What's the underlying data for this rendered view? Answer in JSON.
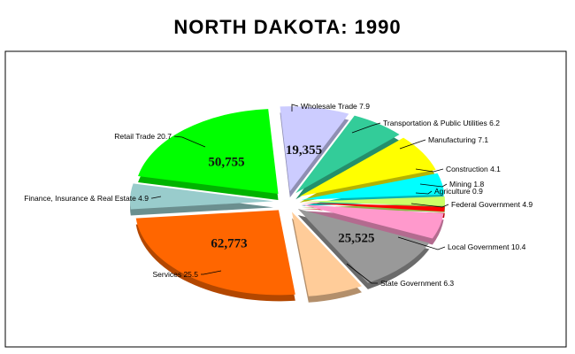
{
  "chart_data": {
    "type": "pie",
    "title": "NORTH DAKOTA:  1990",
    "slices": [
      {
        "label": "Wholesale Trade",
        "percent_text": "7.9",
        "percent": 7.9,
        "color": "#ccccff",
        "value_text": "19,355"
      },
      {
        "label": "Transportation & Public Utilities",
        "percent_text": "6.2",
        "percent": 6.2,
        "color": "#33cc99",
        "value_text": ""
      },
      {
        "label": "Manufacturing",
        "percent_text": "7.1",
        "percent": 7.1,
        "color": "#ffff00",
        "value_text": ""
      },
      {
        "label": "Construction",
        "percent_text": "4.1",
        "percent": 4.1,
        "color": "#00ffff",
        "value_text": ""
      },
      {
        "label": "Mining",
        "percent_text": "1.8",
        "percent": 1.8,
        "color": "#ccff66",
        "value_text": ""
      },
      {
        "label": "Agriculture",
        "percent_text": "0.9",
        "percent": 0.9,
        "color": "#ff0000",
        "value_text": ""
      },
      {
        "label": "Federal Government",
        "percent_text": "4.9",
        "percent": 4.9,
        "color": "#ff99cc",
        "value_text": ""
      },
      {
        "label": "Local Government",
        "percent_text": "10.4",
        "percent": 10.4,
        "color": "#999999",
        "value_text": "25,525"
      },
      {
        "label": "State Government",
        "percent_text": "6.3",
        "percent": 6.3,
        "color": "#ffcc99",
        "value_text": ""
      },
      {
        "label": "Services",
        "percent_text": "25.5",
        "percent": 25.5,
        "color": "#ff6600",
        "value_text": "62,773"
      },
      {
        "label": "Finance, Insurance & Real Estate",
        "percent_text": "4.9",
        "percent": 4.9,
        "color": "#99cccc",
        "value_text": ""
      },
      {
        "label": "Retail Trade",
        "percent_text": "20.7",
        "percent": 20.7,
        "color": "#00ff00",
        "value_text": "50,755"
      }
    ]
  }
}
